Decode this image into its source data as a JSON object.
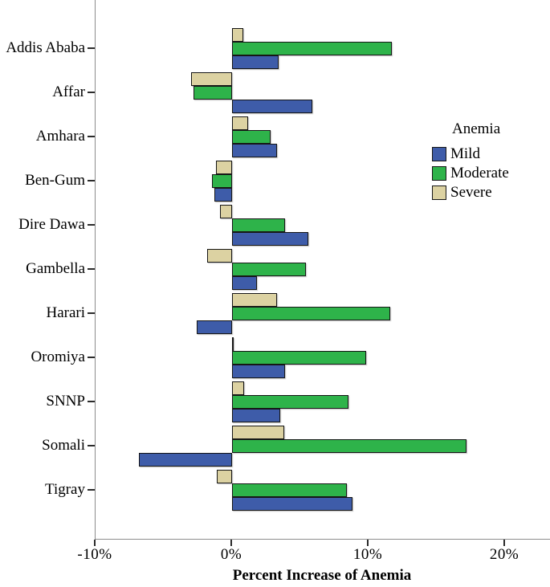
{
  "chart_data": {
    "type": "bar",
    "orientation": "horizontal",
    "title": "",
    "xlabel": "Percent Increase of Anemia",
    "ylabel": "",
    "categories": [
      "Addis Ababa",
      "Affar",
      "Amhara",
      "Ben-Gum",
      "Dire Dawa",
      "Gambella",
      "Harari",
      "Oromiya",
      "SNNP",
      "Somali",
      "Tigray"
    ],
    "series": [
      {
        "name": "Mild",
        "color": "#3E5CA9",
        "values": [
          3.4,
          5.9,
          3.3,
          -1.3,
          5.6,
          1.8,
          -2.6,
          3.9,
          3.5,
          -6.8,
          8.8
        ]
      },
      {
        "name": "Moderate",
        "color": "#2EB34A",
        "values": [
          11.7,
          -2.8,
          2.8,
          -1.5,
          3.9,
          5.4,
          11.6,
          9.8,
          8.5,
          17.2,
          8.4
        ]
      },
      {
        "name": "Severe",
        "color": "#DCD2A2",
        "values": [
          0.8,
          -3.0,
          1.2,
          -1.2,
          -0.9,
          -1.8,
          3.3,
          0.1,
          0.9,
          3.8,
          -1.1
        ]
      }
    ],
    "bar_order_top_to_bottom": [
      "Severe",
      "Moderate",
      "Mild"
    ],
    "x_ticks": [
      {
        "value": -10,
        "label": "-10%"
      },
      {
        "value": 0,
        "label": "0%"
      },
      {
        "value": 10,
        "label": "10%"
      },
      {
        "value": 20,
        "label": "20%"
      }
    ],
    "xlim": [
      -10,
      23.3
    ],
    "grid": false,
    "legend_title": "Anemia",
    "legend_position": "right"
  },
  "legend": {
    "title": "Anemia",
    "items": [
      {
        "label": "Mild",
        "color": "#3E5CA9"
      },
      {
        "label": "Moderate",
        "color": "#2EB34A"
      },
      {
        "label": "Severe",
        "color": "#DCD2A2"
      }
    ]
  }
}
